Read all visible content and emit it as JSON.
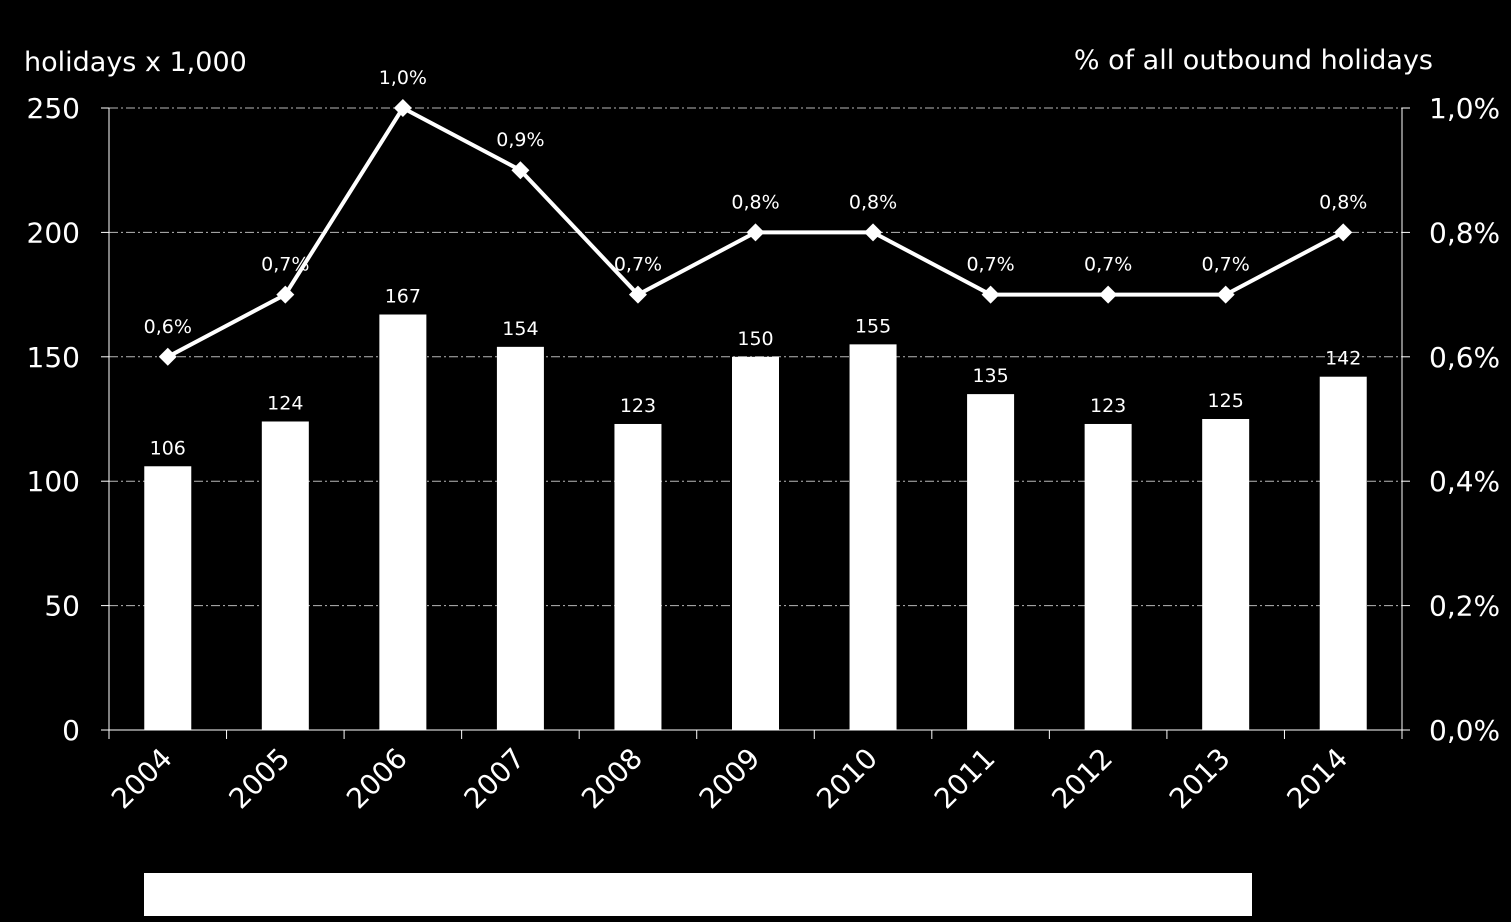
{
  "chart_data": {
    "type": "bar",
    "title": "",
    "categories": [
      "2004",
      "2005",
      "2006",
      "2007",
      "2008",
      "2009",
      "2010",
      "2011",
      "2012",
      "2013",
      "2014"
    ],
    "series": [
      {
        "name": "holidays x 1,000",
        "type": "bar",
        "axis": "left",
        "values": [
          106,
          124,
          167,
          154,
          123,
          150,
          155,
          135,
          123,
          125,
          142
        ],
        "labels": [
          "106",
          "124",
          "167",
          "154",
          "123",
          "150",
          "155",
          "135",
          "123",
          "125",
          "142"
        ]
      },
      {
        "name": "% of all outbound holidays",
        "type": "line",
        "axis": "right",
        "values": [
          0.6,
          0.7,
          1.0,
          0.9,
          0.7,
          0.8,
          0.8,
          0.7,
          0.7,
          0.7,
          0.8
        ],
        "labels": [
          "0,6%",
          "0,7%",
          "1,0%",
          "0,9%",
          "0,7%",
          "0,8%",
          "0,8%",
          "0,7%",
          "0,7%",
          "0,7%",
          "0,8%"
        ]
      }
    ],
    "ylabel": "holidays x 1,000",
    "y2label": "% of all outbound holidays",
    "ylim": [
      0,
      250
    ],
    "y2lim": [
      0,
      1.0
    ],
    "yticks": [
      0,
      50,
      100,
      150,
      200,
      250
    ],
    "yticklabels": [
      "0",
      "50",
      "100",
      "150",
      "200",
      "250"
    ],
    "y2ticks": [
      0,
      0.2,
      0.4,
      0.6,
      0.8,
      1.0
    ],
    "y2ticklabels": [
      "0,0%",
      "0,2%",
      "0,4%",
      "0,6%",
      "0,8%",
      "1,0%"
    ],
    "grid": true,
    "colors": {
      "background": "#000000",
      "bars": "#ffffff",
      "line": "#ffffff",
      "text": "#ffffff"
    }
  }
}
